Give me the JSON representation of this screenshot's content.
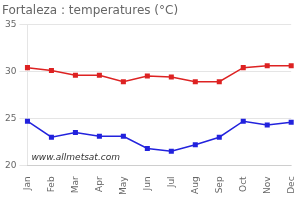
{
  "chart_data": {
    "type": "line",
    "title": "Fortaleza : temperatures (°C)",
    "categories": [
      "Jan",
      "Feb",
      "Mar",
      "Apr",
      "May",
      "Jun",
      "Jul",
      "Aug",
      "Sep",
      "Oct",
      "Nov",
      "Dec"
    ],
    "series": [
      {
        "color": "#dd2222",
        "marker": "square",
        "values": [
          30.4,
          30.1,
          29.6,
          29.6,
          28.9,
          29.5,
          29.4,
          28.9,
          28.9,
          30.4,
          30.6,
          30.6
        ]
      },
      {
        "color": "#2222dd",
        "marker": "square",
        "values": [
          24.7,
          23.0,
          23.5,
          23.1,
          23.1,
          21.8,
          21.5,
          22.2,
          23.0,
          24.7,
          24.3,
          24.6
        ]
      }
    ],
    "ylim": [
      20,
      35
    ],
    "yticks": [
      20,
      25,
      30,
      35
    ],
    "grid": true,
    "annotations": [
      "www.allmetsat.com"
    ]
  }
}
